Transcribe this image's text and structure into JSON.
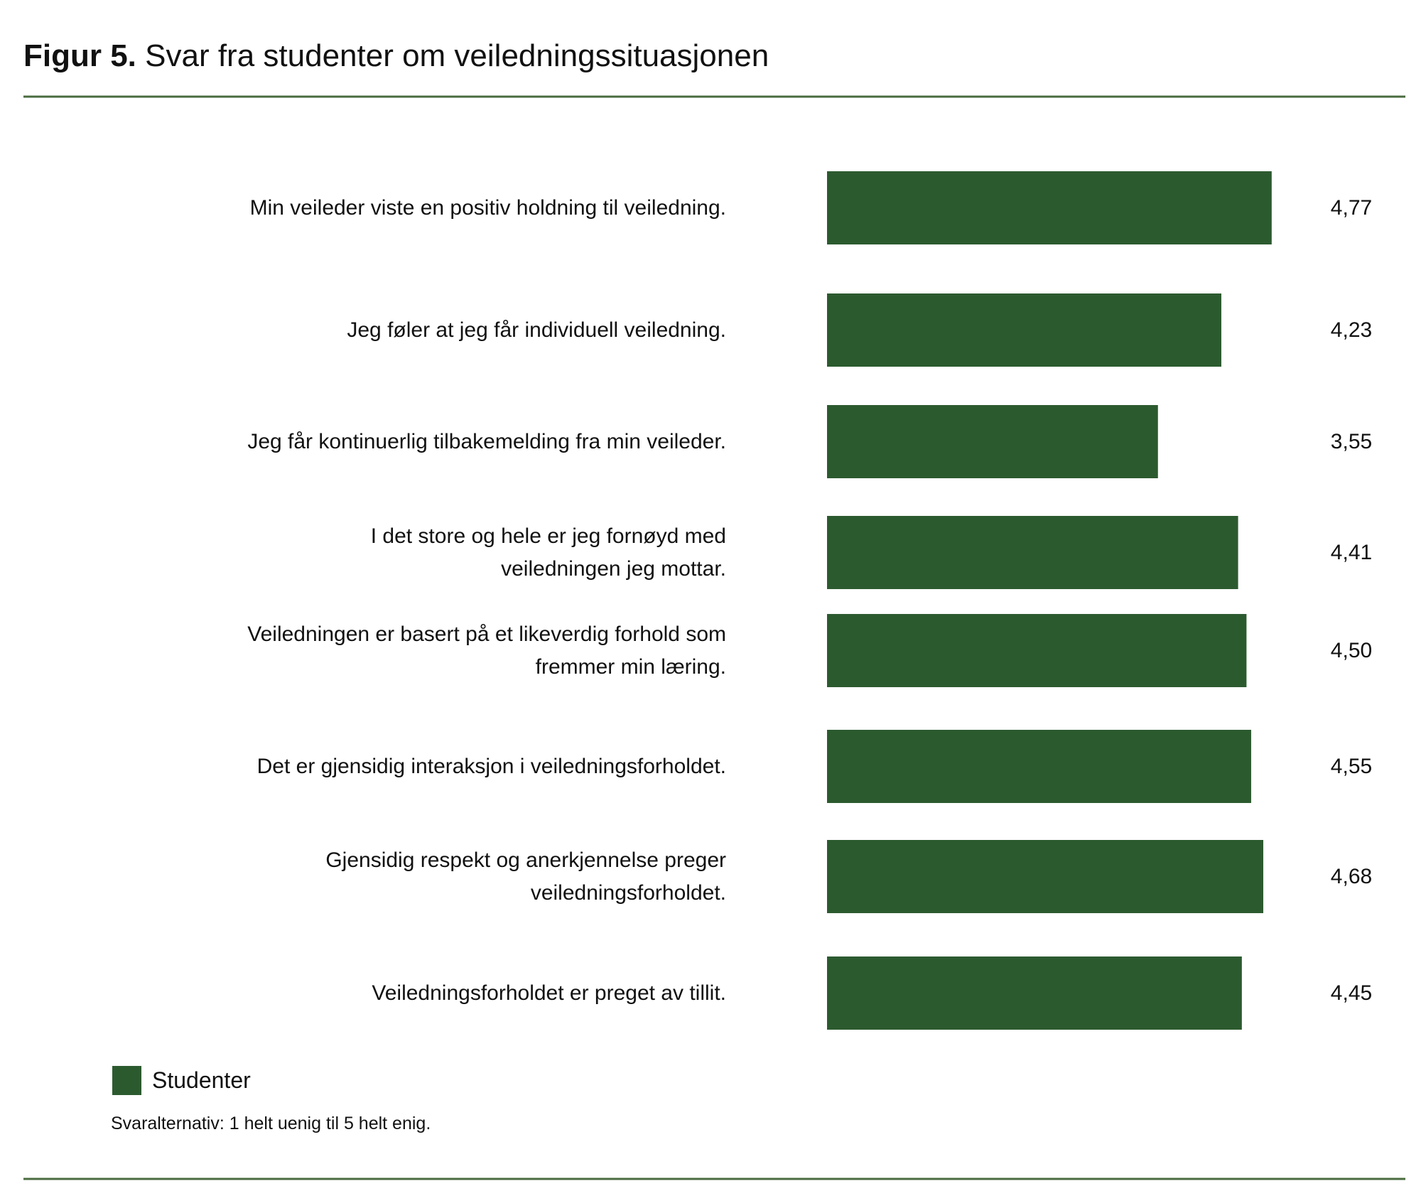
{
  "chart_data": {
    "type": "hbar",
    "title_label": "Figur 5.",
    "title": "Svar fra studenter om veiledningssituasjonen",
    "categories": [
      "Min veileder viste en positiv holdning til veiledning.",
      "Jeg føler at jeg får individuell veiledning.",
      "Jeg får kontinuerlig tilbakemelding fra min veileder.",
      "I det store og hele er jeg fornøyd med\nveiledningen jeg mottar.",
      "Veiledningen er basert på et likeverdig forhold som\nfremmer min læring.",
      "Det er gjensidig interaksjon i veiledningsforholdet.",
      "Gjensidig respekt og anerkjennelse preger\nveiledningsforholdet.",
      "Veiledningsforholdet er preget av tillit."
    ],
    "series": [
      {
        "name": "Studenter",
        "color": "#2c5a2f",
        "values": [
          4.77,
          4.23,
          3.55,
          4.41,
          4.5,
          4.55,
          4.68,
          4.45
        ],
        "value_labels": [
          "4,77",
          "4,23",
          "3,55",
          "4,41",
          "4,50",
          "4,55",
          "4,68",
          "4,45"
        ]
      }
    ],
    "legend": "bottom-left",
    "note": "Svaralternativ: 1 helt uenig til 5 helt enig."
  }
}
